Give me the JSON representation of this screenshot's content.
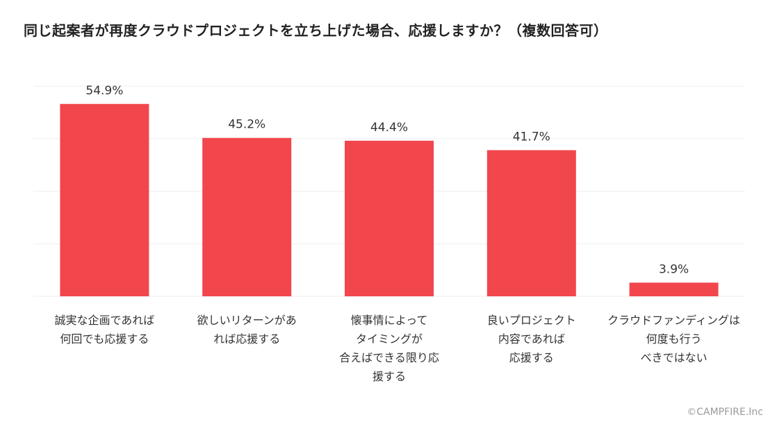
{
  "title": "同じ起案者が再度クラウドプロジェクトを立ち上げた場合、応援しますか？（複数回答可）",
  "credit": "©CAMPFIRE.Inc",
  "colors": {
    "bar": "#f2464d",
    "grid": "#eeeeee",
    "text": "#333333"
  },
  "chart_data": {
    "type": "bar",
    "categories": [
      [
        "誠実な企画であれば",
        "何回でも応援する"
      ],
      [
        "欲しいリターンがあ",
        "れば応援する"
      ],
      [
        "懐事情によって",
        "タイミングが",
        "合えばできる限り応",
        "援する"
      ],
      [
        "良いプロジェクト",
        "内容であれば",
        "応援する"
      ],
      [
        "クラウドファンディングは",
        "何度も行う",
        "べきではない"
      ]
    ],
    "values": [
      54.9,
      45.2,
      44.4,
      41.7,
      3.9
    ],
    "value_labels": [
      "54.9%",
      "45.2%",
      "44.4%",
      "41.7%",
      "3.9%"
    ],
    "ylim": [
      0,
      60
    ],
    "grid": true,
    "legend": "none"
  }
}
